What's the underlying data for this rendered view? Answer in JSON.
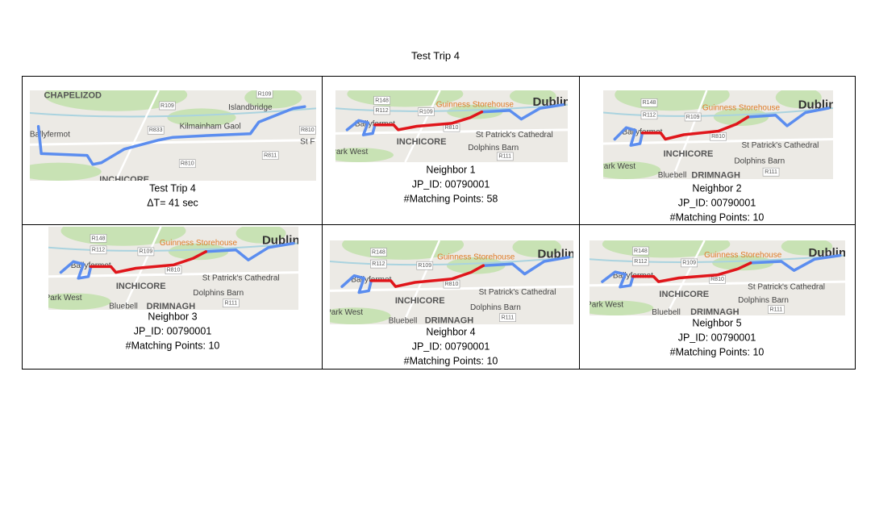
{
  "title": "Test Trip 4",
  "cells": [
    {
      "map_labels": [
        "CHAPELIZOD",
        "R109",
        "R109",
        "Islandbridge",
        "Ballyfermot",
        "R833",
        "Kilmainham Gaol",
        "R810",
        "St F",
        "R811",
        "R810",
        "INCHICORE"
      ],
      "caption_lines": [
        "Test Trip 4",
        "ΔT= 41 sec"
      ]
    },
    {
      "map_labels": [
        "R148",
        "R112",
        "R109",
        "Guinness Storehouse",
        "Dublin",
        "Ballyfermot",
        "R810",
        "INCHICORE",
        "St Patrick's Cathedral",
        "Dolphins Barn",
        "R111",
        "Park West"
      ],
      "caption_lines": [
        "Neighbor 1",
        "JP_ID: 00790001",
        "#Matching Points: 58"
      ]
    },
    {
      "map_labels": [
        "R148",
        "R112",
        "R109",
        "Guinness Storehouse",
        "Dublin",
        "Ballyfermot",
        "R810",
        "INCHICORE",
        "St Patrick's Cathedral",
        "Dolphins Barn",
        "R111",
        "Park West",
        "Bluebell",
        "DRIMNAGH"
      ],
      "caption_lines": [
        "Neighbor 2",
        "JP_ID: 00790001",
        "#Matching Points: 10"
      ]
    },
    {
      "map_labels": [
        "R148",
        "R112",
        "R109",
        "Guinness Storehouse",
        "Dublin",
        "Ballyfermot",
        "R810",
        "INCHICORE",
        "St Patrick's Cathedral",
        "Dolphins Barn",
        "R111",
        "Park West",
        "Bluebell",
        "DRIMNAGH"
      ],
      "caption_lines": [
        "Neighbor 3",
        "JP_ID: 00790001",
        "#Matching Points: 10"
      ]
    },
    {
      "map_labels": [
        "R148",
        "R112",
        "R109",
        "Guinness Storehouse",
        "Dublin",
        "Ballyfermot",
        "R810",
        "INCHICORE",
        "St Patrick's Cathedral",
        "Dolphins Barn",
        "R111",
        "Park West",
        "Bluebell",
        "DRIMNAGH"
      ],
      "caption_lines": [
        "Neighbor 4",
        "JP_ID: 00790001",
        "#Matching Points: 10"
      ]
    },
    {
      "map_labels": [
        "R148",
        "R112",
        "R109",
        "Guinness Storehouse",
        "Dublin",
        "Ballyfermot",
        "R810",
        "INCHICORE",
        "St Patrick's Cathedral",
        "Dolphins Barn",
        "R111",
        "Park West",
        "Bluebell",
        "DRIMNAGH"
      ],
      "caption_lines": [
        "Neighbor 5",
        "JP_ID: 00790001",
        "#Matching Points: 10"
      ]
    }
  ]
}
